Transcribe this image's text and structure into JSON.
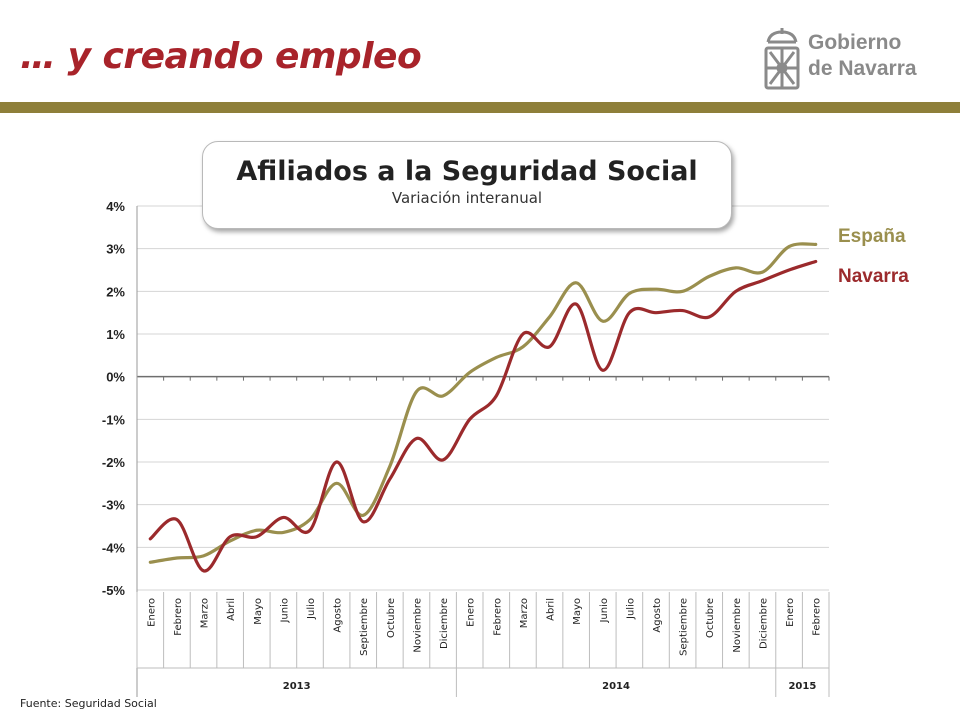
{
  "slide": {
    "title": "… y creando empleo",
    "logo_line1": "Gobierno",
    "logo_line2": "de Navarra",
    "source": "Fuente: Seguridad Social"
  },
  "colors": {
    "title": "#a8232a",
    "band": "#8e7f3a",
    "espana": "#9a8f4e",
    "navarra": "#9b2a2c",
    "logo": "#8a8a8a"
  },
  "chart_data": {
    "type": "line",
    "title": "Afiliados a la Seguridad Social",
    "subtitle": "Variación interanual",
    "categories": [
      "Enero",
      "Febrero",
      "Marzo",
      "Abril",
      "Mayo",
      "Junio",
      "Julio",
      "Agosto",
      "Septiembre",
      "Octubre",
      "Noviembre",
      "Diciembre",
      "Enero",
      "Febrero",
      "Marzo",
      "Abril",
      "Mayo",
      "Junio",
      "Julio",
      "Agosto",
      "Septiembre",
      "Octubre",
      "Noviembre",
      "Diciembre",
      "Enero",
      "Febrero"
    ],
    "year_groups": [
      {
        "label": "2013",
        "count": 12
      },
      {
        "label": "2014",
        "count": 12
      },
      {
        "label": "2015",
        "count": 2
      }
    ],
    "y_ticks": [
      "4%",
      "3%",
      "2%",
      "1%",
      "0%",
      "-1%",
      "-2%",
      "-3%",
      "-4%",
      "-5%"
    ],
    "ylim": [
      -5,
      4
    ],
    "grid": true,
    "legend_position": "right",
    "series": [
      {
        "name": "España",
        "color": "#9a8f4e",
        "values": [
          -4.35,
          -4.25,
          -4.2,
          -3.85,
          -3.6,
          -3.65,
          -3.35,
          -2.5,
          -3.25,
          -2.1,
          -0.35,
          -0.45,
          0.1,
          0.45,
          0.7,
          1.4,
          2.2,
          1.3,
          1.95,
          2.05,
          2.0,
          2.35,
          2.55,
          2.45,
          3.05,
          3.1
        ]
      },
      {
        "name": "Navarra",
        "color": "#9b2a2c",
        "values": [
          -3.8,
          -3.35,
          -4.55,
          -3.75,
          -3.75,
          -3.3,
          -3.6,
          -2.0,
          -3.4,
          -2.4,
          -1.45,
          -1.95,
          -1.0,
          -0.45,
          1.0,
          0.7,
          1.7,
          0.15,
          1.5,
          1.5,
          1.55,
          1.4,
          2.0,
          2.25,
          2.5,
          2.7
        ]
      }
    ]
  }
}
